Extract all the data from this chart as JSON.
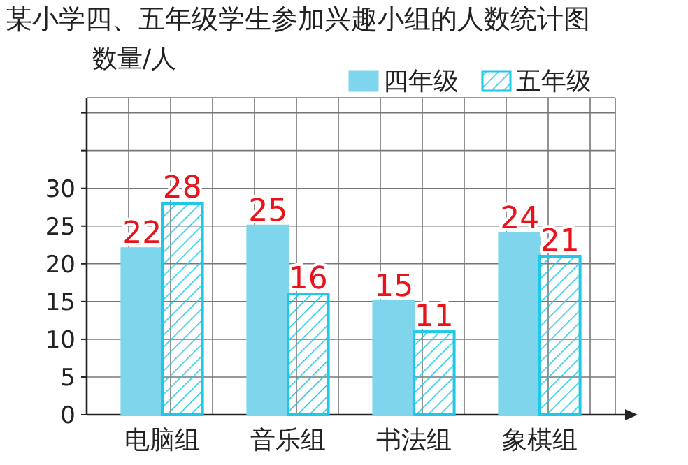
{
  "chart_data": {
    "type": "bar",
    "title": "某小学四、五年级学生参加兴趣小组的人数统计图",
    "ylabel": "数量/人",
    "categories": [
      "电脑组",
      "音乐组",
      "书法组",
      "象棋组"
    ],
    "series": [
      {
        "name": "四年级",
        "color": "#7fd6ec",
        "values": [
          22,
          25,
          15,
          24
        ]
      },
      {
        "name": "五年级",
        "color": "#1ec8e6",
        "values": [
          28,
          16,
          11,
          21
        ]
      }
    ],
    "ylim": [
      0,
      42
    ],
    "yticks": [
      0,
      5,
      10,
      15,
      20,
      25,
      30,
      {
        "value": 35,
        "label": null
      },
      {
        "value": 40,
        "label": null
      }
    ],
    "grid": true,
    "legend": "top right",
    "data_labels": true
  }
}
